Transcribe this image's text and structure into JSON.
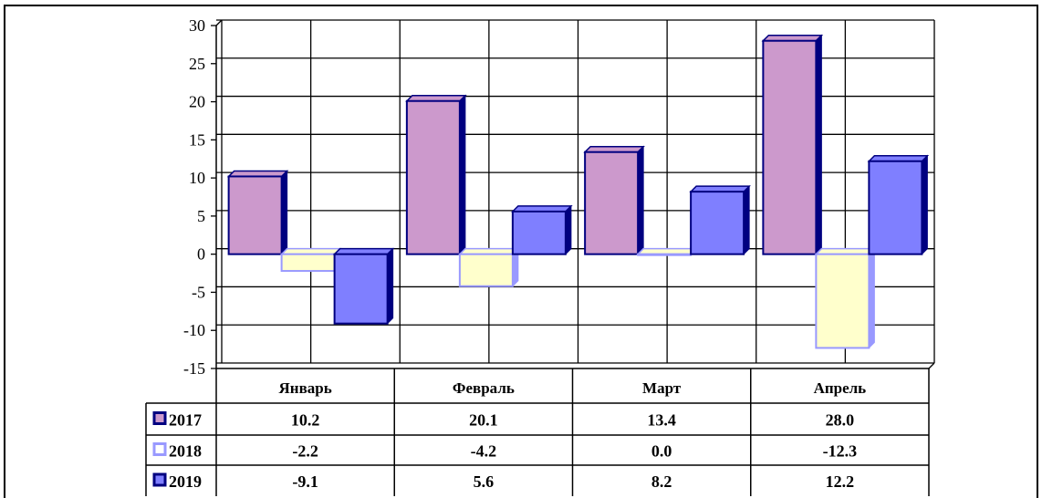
{
  "chart_data": {
    "type": "bar",
    "categories": [
      "Январь",
      "Февраль",
      "Март",
      "Апрель"
    ],
    "series": [
      {
        "name": "2017",
        "values": [
          10.2,
          20.1,
          13.4,
          28.0
        ],
        "labels": [
          "10.2",
          "20.1",
          "13.4",
          "28.0"
        ]
      },
      {
        "name": "2018",
        "values": [
          -2.2,
          -4.2,
          0.0,
          -12.3
        ],
        "labels": [
          "-2.2",
          "-4.2",
          "0.0",
          "-12.3"
        ]
      },
      {
        "name": "2019",
        "values": [
          -9.1,
          5.6,
          8.2,
          12.2
        ],
        "labels": [
          "-9.1",
          "5.6",
          "8.2",
          "12.2"
        ]
      }
    ],
    "yticks": [
      "30",
      "25",
      "20",
      "15",
      "10",
      "5",
      "0",
      "-5",
      "-10",
      "-15"
    ],
    "ylim": [
      -15,
      30
    ],
    "ytick_step": 5,
    "grid": true,
    "data_table": true,
    "colors": {
      "2017": "#cc99cc",
      "2018": "#ffffcc",
      "2019": "#7f7fff",
      "border": "#000080",
      "border_2018": "#9999ff"
    }
  }
}
